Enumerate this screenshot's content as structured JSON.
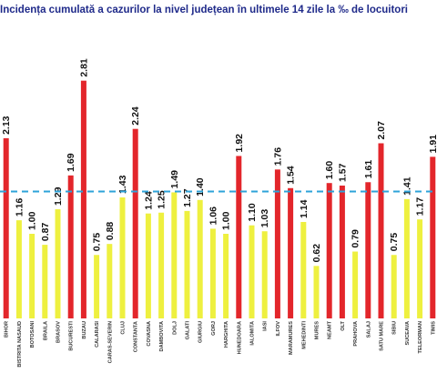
{
  "chart_data": {
    "type": "bar",
    "title": "Incidența cumulată a cazurilor la nivel județean în ultimele 14 zile la ‰ de locuitori",
    "categories": [
      "",
      "BIHOR",
      "BISTRITA NASAUD",
      "BOTOSANI",
      "BRAILA",
      "BRASOV",
      "BUCURESTI",
      "BUZAU",
      "CALARASI",
      "CARAS-SEVERIN",
      "CLUJ",
      "CONSTANTA",
      "COVASNA",
      "DAMBOVITA",
      "DOLJ",
      "GALATI",
      "GIURGIU",
      "GORJ",
      "HARGHITA",
      "HUNEDOARA",
      "IALOMITA",
      "IASI",
      "ILFOV",
      "MARAMURES",
      "MEHEDINTI",
      "MURES",
      "NEAMT",
      "OLT",
      "PRAHOVA",
      "SALAJ",
      "SATU MARE",
      "SIBIU",
      "SUCEAVA",
      "TELEORMAN",
      "TIMIS"
    ],
    "values": [
      2.13,
      2.13,
      1.16,
      1.0,
      0.87,
      1.29,
      1.69,
      2.81,
      0.75,
      0.88,
      1.43,
      2.24,
      1.24,
      1.25,
      1.49,
      1.27,
      1.4,
      1.06,
      1.0,
      1.92,
      1.1,
      1.03,
      1.76,
      1.54,
      1.14,
      0.62,
      1.6,
      1.57,
      0.79,
      1.61,
      2.07,
      0.75,
      1.41,
      1.17,
      1.91
    ],
    "labels": [
      "",
      "2.13",
      "1.16",
      "1.00",
      "0.87",
      "1.29",
      "1.69",
      "2.81",
      "0.75",
      "0.88",
      "1.43",
      "2.24",
      "1.24",
      "1.25",
      "1.49",
      "1.27",
      "1.40",
      "1.06",
      "1.00",
      "1.92",
      "1.10",
      "1.03",
      "1.76",
      "1.54",
      "1.14",
      "0.62",
      "1.60",
      "1.57",
      "0.79",
      "1.61",
      "2.07",
      "0.75",
      "1.41",
      "1.17",
      "1.91"
    ],
    "colors": [
      "#e3262b",
      "#e3262b",
      "#eef03f",
      "#eef03f",
      "#eef03f",
      "#eef03f",
      "#e3262b",
      "#e3262b",
      "#eef03f",
      "#eef03f",
      "#eef03f",
      "#e3262b",
      "#eef03f",
      "#eef03f",
      "#eef03f",
      "#eef03f",
      "#eef03f",
      "#eef03f",
      "#eef03f",
      "#e3262b",
      "#eef03f",
      "#eef03f",
      "#e3262b",
      "#e3262b",
      "#eef03f",
      "#eef03f",
      "#e3262b",
      "#e3262b",
      "#eef03f",
      "#e3262b",
      "#e3262b",
      "#eef03f",
      "#eef03f",
      "#eef03f",
      "#e3262b"
    ],
    "reference_line": 1.5,
    "reference_line_color": "#2ea3d9",
    "ylim": [
      0,
      3.2
    ],
    "grid": false,
    "legend": "none",
    "xlabel": "",
    "ylabel": ""
  }
}
